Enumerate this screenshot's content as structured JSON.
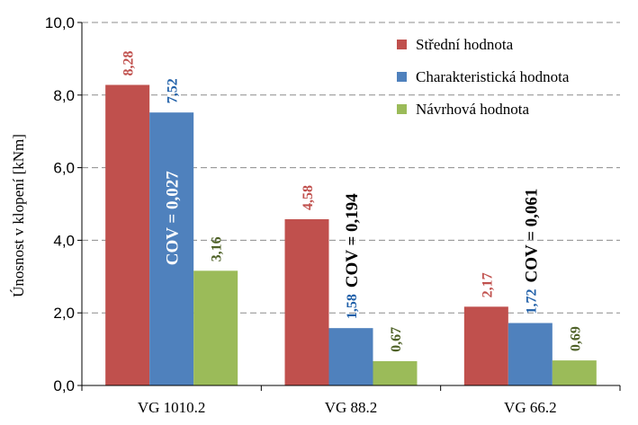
{
  "chart_data": {
    "type": "bar",
    "categories": [
      "VG 1010.2",
      "VG 88.2",
      "VG 66.2"
    ],
    "series": [
      {
        "name": "Střední hodnota",
        "color": "#C0504D",
        "labelColor": "#C0504D",
        "values": [
          8.28,
          4.58,
          2.17
        ],
        "labels": [
          "8,28",
          "4,58",
          "2,17"
        ]
      },
      {
        "name": "Charakteristická hodnota",
        "color": "#4F81BD",
        "labelColor": "#1F5FA8",
        "values": [
          7.52,
          1.58,
          1.72
        ],
        "labels": [
          "7,52",
          "1,58",
          "1,72"
        ]
      },
      {
        "name": "Návrhová hodnota",
        "color": "#9BBB59",
        "labelColor": "#4F6228",
        "values": [
          3.16,
          0.67,
          0.69
        ],
        "labels": [
          "3,16",
          "0,67",
          "0,69"
        ]
      }
    ],
    "ylabel": "Únosnost v klopení [kNm]",
    "xlabel": "",
    "ylim": [
      0,
      10
    ],
    "yticks": [
      0,
      2,
      4,
      6,
      8,
      10
    ],
    "ytick_labels": [
      "0,0",
      "2,0",
      "4,0",
      "6,0",
      "8,0",
      "10,0"
    ],
    "grid": true,
    "legend_position": "top-right",
    "annotations": [
      {
        "category": 0,
        "text": "COV = 0,027",
        "color": "#ffffff",
        "anchor": "inside-series-1"
      },
      {
        "category": 1,
        "text": "COV = 0,194",
        "color": "#000000",
        "anchor": "above-series-1"
      },
      {
        "category": 2,
        "text": "COV = 0,061",
        "color": "#000000",
        "anchor": "above-series-1"
      }
    ]
  }
}
